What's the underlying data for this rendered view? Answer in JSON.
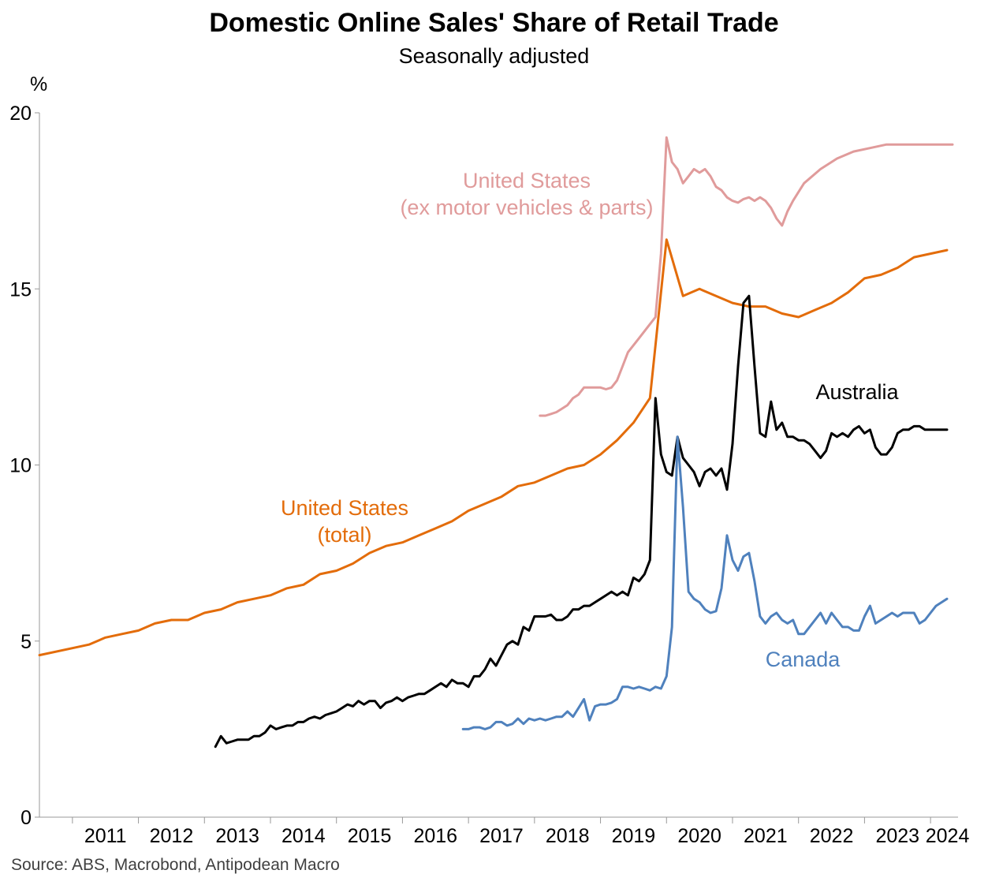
{
  "title": "Domestic Online Sales' Share of Retail Trade",
  "subtitle": "Seasonally adjusted",
  "source": "Source: ABS, Macrobond, Antipodean Macro",
  "chart_data": {
    "type": "line",
    "title": "Domestic Online Sales' Share of Retail Trade",
    "subtitle": "Seasonally adjusted",
    "ylabel": "%",
    "xlabel": "",
    "ylim": [
      0,
      20
    ],
    "xlim": [
      "2010-07",
      "2024-06"
    ],
    "yticks": [
      "0",
      "5",
      "10",
      "15",
      "20"
    ],
    "xticks": [
      "2011",
      "2012",
      "2013",
      "2014",
      "2015",
      "2016",
      "2017",
      "2018",
      "2019",
      "2020",
      "2021",
      "2022",
      "2023",
      "2024"
    ],
    "grid": false,
    "legend": "inline labels",
    "series": [
      {
        "name": "United States\n(ex motor vehicles & parts)",
        "color": "#E09B9B",
        "x": [
          "2018-02",
          "2018-03",
          "2018-04",
          "2018-05",
          "2018-06",
          "2018-07",
          "2018-08",
          "2018-09",
          "2018-10",
          "2018-11",
          "2018-12",
          "2019-01",
          "2019-02",
          "2019-03",
          "2019-04",
          "2019-05",
          "2019-06",
          "2019-07",
          "2019-08",
          "2019-09",
          "2019-10",
          "2019-11",
          "2019-12",
          "2020-01",
          "2020-02",
          "2020-03",
          "2020-04",
          "2020-05",
          "2020-06",
          "2020-07",
          "2020-08",
          "2020-09",
          "2020-10",
          "2020-11",
          "2020-12",
          "2021-01",
          "2021-02",
          "2021-03",
          "2021-04",
          "2021-05",
          "2021-06",
          "2021-07",
          "2021-08",
          "2021-09",
          "2021-10",
          "2021-11",
          "2021-12",
          "2022-02",
          "2022-05",
          "2022-08",
          "2022-11",
          "2023-02",
          "2023-05",
          "2023-08",
          "2023-11",
          "2024-02",
          "2024-05"
        ],
        "values": [
          11.4,
          11.4,
          11.45,
          11.5,
          11.6,
          11.7,
          11.9,
          12.0,
          12.2,
          12.2,
          12.2,
          12.2,
          12.15,
          12.2,
          12.4,
          12.8,
          13.2,
          13.4,
          13.6,
          13.8,
          14.0,
          14.2,
          16.0,
          19.3,
          18.6,
          18.4,
          18.0,
          18.2,
          18.4,
          18.3,
          18.4,
          18.2,
          17.9,
          17.8,
          17.6,
          17.5,
          17.45,
          17.55,
          17.6,
          17.5,
          17.6,
          17.5,
          17.3,
          17.0,
          16.8,
          17.2,
          17.5,
          18.0,
          18.4,
          18.7,
          18.9,
          19.0,
          19.1,
          19.1,
          19.1,
          19.1,
          19.1
        ]
      },
      {
        "name": "United States\n(total)",
        "color": "#E36C0A",
        "x": [
          "2010-07",
          "2011-01",
          "2011-04",
          "2011-07",
          "2011-10",
          "2012-01",
          "2012-04",
          "2012-07",
          "2012-10",
          "2013-01",
          "2013-04",
          "2013-07",
          "2013-10",
          "2014-01",
          "2014-04",
          "2014-07",
          "2014-10",
          "2015-01",
          "2015-04",
          "2015-07",
          "2015-10",
          "2016-01",
          "2016-04",
          "2016-07",
          "2016-10",
          "2017-01",
          "2017-04",
          "2017-07",
          "2017-10",
          "2018-01",
          "2018-04",
          "2018-07",
          "2018-10",
          "2019-01",
          "2019-04",
          "2019-07",
          "2019-10",
          "2020-01",
          "2020-04",
          "2020-07",
          "2020-10",
          "2021-01",
          "2021-04",
          "2021-07",
          "2021-10",
          "2022-01",
          "2022-04",
          "2022-07",
          "2022-10",
          "2023-01",
          "2023-04",
          "2023-07",
          "2023-10",
          "2024-01",
          "2024-04"
        ],
        "values": [
          4.6,
          4.8,
          4.9,
          5.1,
          5.2,
          5.3,
          5.5,
          5.6,
          5.6,
          5.8,
          5.9,
          6.1,
          6.2,
          6.3,
          6.5,
          6.6,
          6.9,
          7.0,
          7.2,
          7.5,
          7.7,
          7.8,
          8.0,
          8.2,
          8.4,
          8.7,
          8.9,
          9.1,
          9.4,
          9.5,
          9.7,
          9.9,
          10.0,
          10.3,
          10.7,
          11.2,
          11.9,
          16.4,
          14.8,
          15.0,
          14.8,
          14.6,
          14.5,
          14.5,
          14.3,
          14.2,
          14.4,
          14.6,
          14.9,
          15.3,
          15.4,
          15.6,
          15.9,
          16.0,
          16.1
        ]
      },
      {
        "name": "Australia",
        "color": "#000000",
        "x": [
          "2013-03",
          "2013-04",
          "2013-05",
          "2013-06",
          "2013-07",
          "2013-08",
          "2013-09",
          "2013-10",
          "2013-11",
          "2013-12",
          "2014-01",
          "2014-02",
          "2014-03",
          "2014-04",
          "2014-05",
          "2014-06",
          "2014-07",
          "2014-08",
          "2014-09",
          "2014-10",
          "2014-11",
          "2014-12",
          "2015-01",
          "2015-02",
          "2015-03",
          "2015-04",
          "2015-05",
          "2015-06",
          "2015-07",
          "2015-08",
          "2015-09",
          "2015-10",
          "2015-11",
          "2015-12",
          "2016-01",
          "2016-02",
          "2016-03",
          "2016-04",
          "2016-05",
          "2016-06",
          "2016-07",
          "2016-08",
          "2016-09",
          "2016-10",
          "2016-11",
          "2016-12",
          "2017-01",
          "2017-02",
          "2017-03",
          "2017-04",
          "2017-05",
          "2017-06",
          "2017-07",
          "2017-08",
          "2017-09",
          "2017-10",
          "2017-11",
          "2017-12",
          "2018-01",
          "2018-02",
          "2018-03",
          "2018-04",
          "2018-05",
          "2018-06",
          "2018-07",
          "2018-08",
          "2018-09",
          "2018-10",
          "2018-11",
          "2018-12",
          "2019-01",
          "2019-02",
          "2019-03",
          "2019-04",
          "2019-05",
          "2019-06",
          "2019-07",
          "2019-08",
          "2019-09",
          "2019-10",
          "2019-11",
          "2019-12",
          "2020-01",
          "2020-02",
          "2020-03",
          "2020-04",
          "2020-05",
          "2020-06",
          "2020-07",
          "2020-08",
          "2020-09",
          "2020-10",
          "2020-11",
          "2020-12",
          "2021-01",
          "2021-02",
          "2021-03",
          "2021-04",
          "2021-05",
          "2021-06",
          "2021-07",
          "2021-08",
          "2021-09",
          "2021-10",
          "2021-11",
          "2021-12",
          "2022-01",
          "2022-02",
          "2022-03",
          "2022-04",
          "2022-05",
          "2022-06",
          "2022-07",
          "2022-08",
          "2022-09",
          "2022-10",
          "2022-11",
          "2022-12",
          "2023-01",
          "2023-02",
          "2023-03",
          "2023-04",
          "2023-05",
          "2023-06",
          "2023-07",
          "2023-08",
          "2023-09",
          "2023-10",
          "2023-11",
          "2023-12",
          "2024-01",
          "2024-02",
          "2024-03",
          "2024-04"
        ],
        "values": [
          2.0,
          2.3,
          2.1,
          2.15,
          2.2,
          2.2,
          2.2,
          2.3,
          2.3,
          2.4,
          2.6,
          2.5,
          2.55,
          2.6,
          2.6,
          2.7,
          2.7,
          2.8,
          2.85,
          2.8,
          2.9,
          2.95,
          3.0,
          3.1,
          3.2,
          3.15,
          3.3,
          3.2,
          3.3,
          3.3,
          3.1,
          3.25,
          3.3,
          3.4,
          3.3,
          3.4,
          3.45,
          3.5,
          3.5,
          3.6,
          3.7,
          3.8,
          3.7,
          3.9,
          3.8,
          3.8,
          3.7,
          4.0,
          4.0,
          4.2,
          4.5,
          4.3,
          4.6,
          4.9,
          5.0,
          4.9,
          5.4,
          5.3,
          5.7,
          5.7,
          5.7,
          5.75,
          5.6,
          5.6,
          5.7,
          5.9,
          5.9,
          6.0,
          6.0,
          6.1,
          6.2,
          6.3,
          6.4,
          6.3,
          6.4,
          6.3,
          6.8,
          6.7,
          6.9,
          7.3,
          11.9,
          10.3,
          9.8,
          9.7,
          10.8,
          10.2,
          10.0,
          9.8,
          9.4,
          9.8,
          9.9,
          9.7,
          9.9,
          9.3,
          10.6,
          12.8,
          14.6,
          14.8,
          12.8,
          10.9,
          10.8,
          11.8,
          11.0,
          11.2,
          10.8,
          10.8,
          10.7,
          10.7,
          10.6,
          10.4,
          10.2,
          10.4,
          10.9,
          10.8,
          10.9,
          10.8,
          11.0,
          11.1,
          10.9,
          11.0,
          10.5,
          10.3,
          10.3,
          10.5,
          10.9,
          11.0,
          11.0,
          11.1,
          11.1,
          11.0,
          11.0,
          11.0,
          11.0,
          11.0
        ]
      },
      {
        "name": "Canada",
        "color": "#4F81BD",
        "x": [
          "2016-12",
          "2017-01",
          "2017-02",
          "2017-03",
          "2017-04",
          "2017-05",
          "2017-06",
          "2017-07",
          "2017-08",
          "2017-09",
          "2017-10",
          "2017-11",
          "2017-12",
          "2018-01",
          "2018-02",
          "2018-03",
          "2018-04",
          "2018-05",
          "2018-06",
          "2018-07",
          "2018-08",
          "2018-09",
          "2018-10",
          "2018-11",
          "2018-12",
          "2019-01",
          "2019-02",
          "2019-03",
          "2019-04",
          "2019-05",
          "2019-06",
          "2019-07",
          "2019-08",
          "2019-09",
          "2019-10",
          "2019-11",
          "2019-12",
          "2020-01",
          "2020-02",
          "2020-03",
          "2020-04",
          "2020-05",
          "2020-06",
          "2020-07",
          "2020-08",
          "2020-09",
          "2020-10",
          "2020-11",
          "2020-12",
          "2021-01",
          "2021-02",
          "2021-03",
          "2021-04",
          "2021-05",
          "2021-06",
          "2021-07",
          "2021-08",
          "2021-09",
          "2021-10",
          "2021-11",
          "2021-12",
          "2022-01",
          "2022-02",
          "2022-03",
          "2022-04",
          "2022-05",
          "2022-06",
          "2022-07",
          "2022-08",
          "2022-09",
          "2022-10",
          "2022-11",
          "2022-12",
          "2023-01",
          "2023-02",
          "2023-03",
          "2023-04",
          "2023-05",
          "2023-06",
          "2023-07",
          "2023-08",
          "2023-09",
          "2023-10",
          "2023-11",
          "2023-12",
          "2024-01",
          "2024-02",
          "2024-03",
          "2024-04"
        ],
        "values": [
          2.5,
          2.5,
          2.55,
          2.55,
          2.5,
          2.55,
          2.7,
          2.7,
          2.6,
          2.65,
          2.8,
          2.65,
          2.8,
          2.75,
          2.8,
          2.75,
          2.8,
          2.85,
          2.85,
          3.0,
          2.85,
          3.1,
          3.35,
          2.75,
          3.15,
          3.2,
          3.2,
          3.25,
          3.35,
          3.7,
          3.7,
          3.65,
          3.7,
          3.65,
          3.6,
          3.7,
          3.65,
          4.0,
          5.4,
          10.8,
          8.8,
          6.4,
          6.2,
          6.1,
          5.9,
          5.8,
          5.85,
          6.5,
          8.0,
          7.3,
          7.0,
          7.4,
          7.5,
          6.7,
          5.7,
          5.5,
          5.7,
          5.8,
          5.6,
          5.5,
          5.6,
          5.2,
          5.2,
          5.4,
          5.6,
          5.8,
          5.5,
          5.8,
          5.6,
          5.4,
          5.4,
          5.3,
          5.3,
          5.7,
          6.0,
          5.5,
          5.6,
          5.7,
          5.8,
          5.7,
          5.8,
          5.8,
          5.8,
          5.5,
          5.6,
          5.8,
          6.0,
          6.1,
          6.2
        ]
      }
    ]
  }
}
